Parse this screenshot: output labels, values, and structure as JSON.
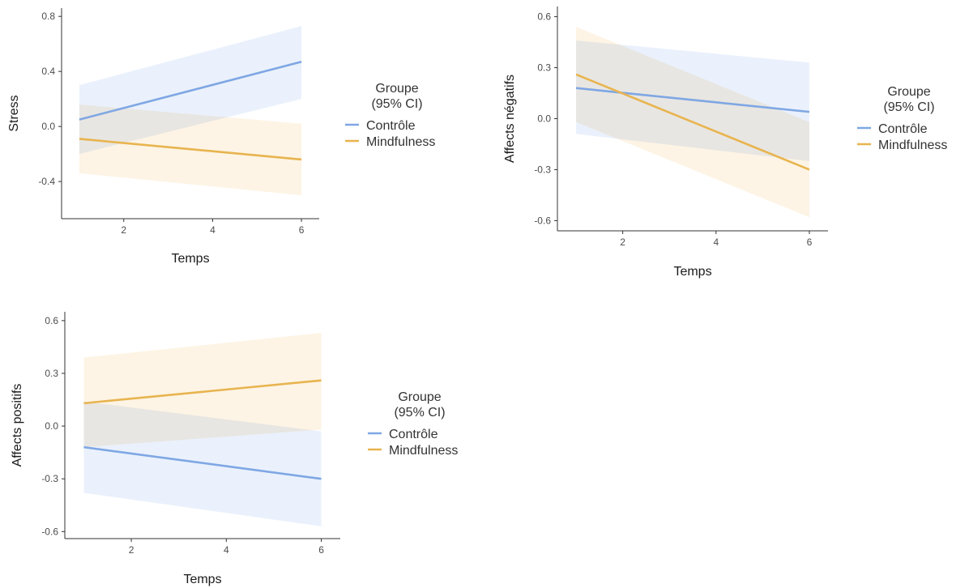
{
  "chart_data": [
    {
      "type": "line",
      "xlabel": "Temps",
      "ylabel": "Stress",
      "xticks": [
        2,
        4,
        6
      ],
      "yticks": [
        -0.4,
        0.0,
        0.4,
        0.8
      ],
      "ytick_labels": [
        "-0.4",
        "0.0",
        "0.4",
        "0.8"
      ],
      "xlim": [
        0.6,
        6.4
      ],
      "ylim": [
        -0.67,
        0.86
      ],
      "legend": {
        "title_line1": "Groupe",
        "title_line2": "(95% CI)",
        "placement": "right"
      },
      "series": [
        {
          "name": "Contrôle",
          "color": "#7fa7e4",
          "band_color": "#e6eefb",
          "x": [
            1,
            6
          ],
          "y": [
            0.05,
            0.47
          ],
          "ci_low": [
            -0.2,
            0.2
          ],
          "ci_high": [
            0.3,
            0.73
          ]
        },
        {
          "name": "Mindfulness",
          "color": "#e8b44f",
          "band_color": "#fdf2e1",
          "x": [
            1,
            6
          ],
          "y": [
            -0.09,
            -0.24
          ],
          "ci_low": [
            -0.34,
            -0.5
          ],
          "ci_high": [
            0.16,
            0.02
          ]
        }
      ]
    },
    {
      "type": "line",
      "xlabel": "Temps",
      "ylabel": "Affects négatifs",
      "xticks": [
        2,
        4,
        6
      ],
      "yticks": [
        -0.6,
        -0.3,
        0.0,
        0.3,
        0.6
      ],
      "ytick_labels": [
        "-0.6",
        "-0.3",
        "0.0",
        "0.3",
        "0.6"
      ],
      "xlim": [
        0.6,
        6.4
      ],
      "ylim": [
        -0.66,
        0.66
      ],
      "legend": {
        "title_line1": "Groupe",
        "title_line2": "(95% CI)",
        "placement": "right"
      },
      "series": [
        {
          "name": "Contrôle",
          "color": "#7fa7e4",
          "band_color": "#e6eefb",
          "x": [
            1,
            6
          ],
          "y": [
            0.18,
            0.04
          ],
          "ci_low": [
            -0.09,
            -0.25
          ],
          "ci_high": [
            0.46,
            0.33
          ]
        },
        {
          "name": "Mindfulness",
          "color": "#e8b44f",
          "band_color": "#fdf2e1",
          "x": [
            1,
            6
          ],
          "y": [
            0.26,
            -0.3
          ],
          "ci_low": [
            -0.02,
            -0.58
          ],
          "ci_high": [
            0.54,
            -0.02
          ]
        }
      ]
    },
    {
      "type": "line",
      "xlabel": "Temps",
      "ylabel": "Affects positifs",
      "xticks": [
        2,
        4,
        6
      ],
      "yticks": [
        -0.6,
        -0.3,
        0.0,
        0.3,
        0.6
      ],
      "ytick_labels": [
        "-0.6",
        "-0.3",
        "0.0",
        "0.3",
        "0.6"
      ],
      "xlim": [
        0.6,
        6.4
      ],
      "ylim": [
        -0.64,
        0.65
      ],
      "legend": {
        "title_line1": "Groupe",
        "title_line2": "(95% CI)",
        "placement": "right"
      },
      "series": [
        {
          "name": "Contrôle",
          "color": "#7fa7e4",
          "band_color": "#e6eefb",
          "x": [
            1,
            6
          ],
          "y": [
            -0.12,
            -0.3
          ],
          "ci_low": [
            -0.38,
            -0.57
          ],
          "ci_high": [
            0.14,
            -0.03
          ]
        },
        {
          "name": "Mindfulness",
          "color": "#e8b44f",
          "band_color": "#fdf2e1",
          "x": [
            1,
            6
          ],
          "y": [
            0.13,
            0.26
          ],
          "ci_low": [
            -0.12,
            -0.02
          ],
          "ci_high": [
            0.39,
            0.53
          ]
        }
      ]
    }
  ]
}
